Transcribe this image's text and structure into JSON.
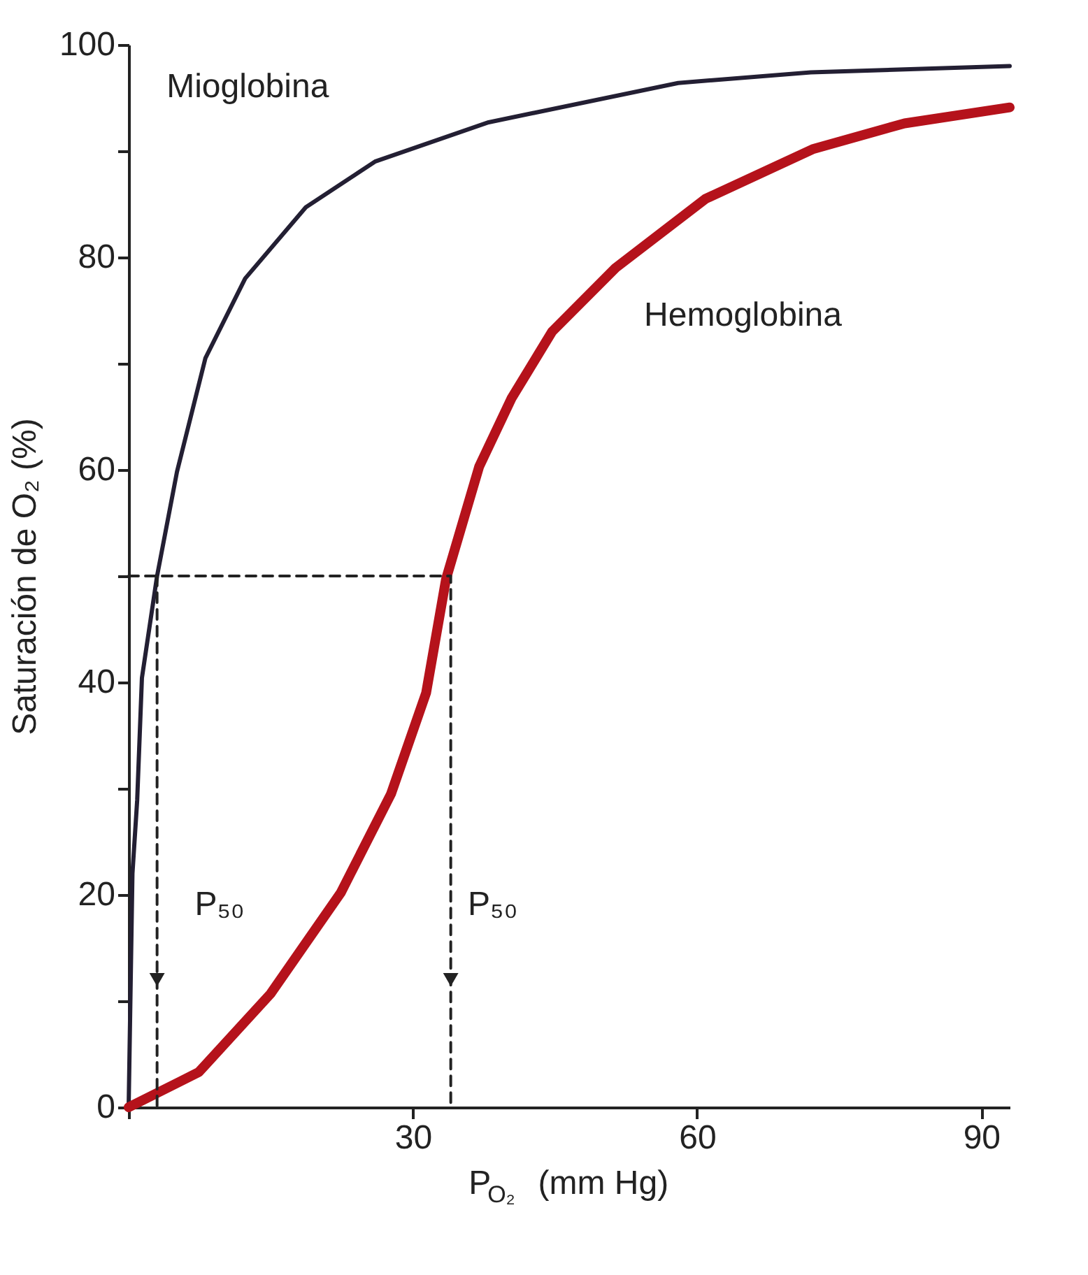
{
  "chart_data": {
    "type": "line",
    "xlabel": "P$_{O₂}$ (mm Hg)",
    "ylabel": "Saturación de O₂ (%)",
    "xlim": [
      0,
      93
    ],
    "ylim": [
      0,
      100
    ],
    "xticks": [
      {
        "value": 0,
        "label": null
      },
      30,
      60,
      90
    ],
    "yticks": [
      0,
      {
        "value": 10,
        "label": null
      },
      20,
      {
        "value": 30,
        "label": null
      },
      40,
      {
        "value": 50,
        "label": null
      },
      60,
      {
        "value": 70,
        "label": null
      },
      80,
      {
        "value": 90,
        "label": null
      },
      100
    ],
    "grid": false,
    "marker": "none",
    "line_style": "solid",
    "series": [
      {
        "color": "#231f33",
        "x": [
          0,
          0.4,
          0.9,
          1.4,
          3,
          5.1,
          8.1,
          12.3,
          18.7,
          26,
          38,
          58,
          72,
          93
        ],
        "values": [
          0,
          22,
          28.9,
          40.4,
          50,
          59.8,
          70.5,
          78,
          84.7,
          89,
          92.7,
          96.4,
          97.4,
          98
        ]
      },
      {
        "color": "#b5121b",
        "x": [
          0,
          7.4,
          15,
          22.4,
          27.7,
          31.4,
          33.5,
          37,
          40.4,
          44.7,
          51.4,
          60.9,
          72.3,
          81.9,
          93
        ],
        "values": [
          0,
          3.3,
          10.7,
          20.2,
          29.5,
          39,
          49.7,
          60.3,
          66.7,
          73,
          79,
          85.5,
          90.2,
          92.6,
          94.1
        ]
      },
      {
        "color": "#222222",
        "line_style": "dashed",
        "x": [
          0,
          34,
          34
        ],
        "values": [
          50,
          50,
          0
        ]
      },
      {
        "color": "#222222",
        "line_style": "dashed",
        "x": [
          3,
          3
        ],
        "values": [
          50,
          0
        ]
      },
      {
        "type": "scatter",
        "marker": "triangle",
        "color": "#222222",
        "x": [
          3,
          34
        ],
        "values": [
          12,
          12
        ]
      }
    ],
    "annotations": [
      "Mioglobina",
      "Hemoglobina",
      "P₅₀",
      "P₅₀"
    ]
  }
}
